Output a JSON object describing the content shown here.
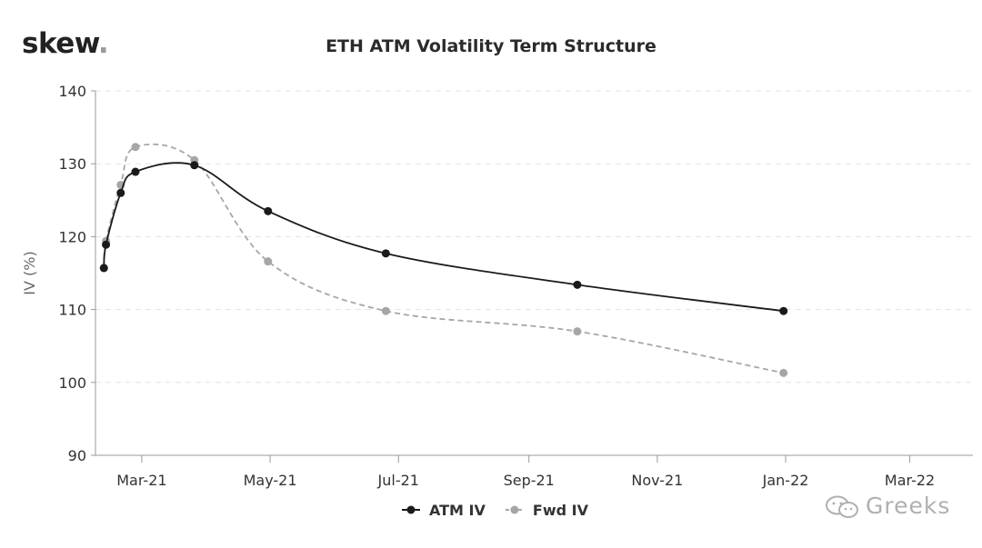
{
  "logo": {
    "text": "skew",
    "dot": "."
  },
  "chart_data": {
    "type": "line",
    "title": "ETH ATM Volatility Term Structure",
    "ylabel": "IV (%)",
    "xlabel": "",
    "ylim": [
      90,
      140
    ],
    "yticks": [
      90,
      100,
      110,
      120,
      130,
      140
    ],
    "xlim": [
      "2021-02-07",
      "2022-03-31"
    ],
    "xticks": [
      {
        "label": "Mar-21",
        "date": "2021-03-01"
      },
      {
        "label": "May-21",
        "date": "2021-05-01"
      },
      {
        "label": "Jul-21",
        "date": "2021-07-01"
      },
      {
        "label": "Sep-21",
        "date": "2021-09-01"
      },
      {
        "label": "Nov-21",
        "date": "2021-11-01"
      },
      {
        "label": "Jan-22",
        "date": "2022-01-01"
      },
      {
        "label": "Mar-22",
        "date": "2022-03-01"
      }
    ],
    "grid": "horizontal dashed",
    "legend": "bottom-center",
    "series": [
      {
        "name": "ATM IV",
        "color": "#1a1a1a",
        "style": "solid",
        "points": [
          {
            "x": "2021-02-11",
            "y": 115.7
          },
          {
            "x": "2021-02-12",
            "y": 118.9
          },
          {
            "x": "2021-02-19",
            "y": 126.0
          },
          {
            "x": "2021-02-26",
            "y": 128.9
          },
          {
            "x": "2021-03-26",
            "y": 129.8
          },
          {
            "x": "2021-04-30",
            "y": 123.5
          },
          {
            "x": "2021-06-25",
            "y": 117.7
          },
          {
            "x": "2021-09-24",
            "y": 113.4
          },
          {
            "x": "2021-12-31",
            "y": 109.8
          }
        ]
      },
      {
        "name": "Fwd IV",
        "color": "#a6a6a6",
        "style": "dashed",
        "points": [
          {
            "x": "2021-02-11",
            "y": 115.7
          },
          {
            "x": "2021-02-12",
            "y": 119.4
          },
          {
            "x": "2021-02-19",
            "y": 127.1
          },
          {
            "x": "2021-02-26",
            "y": 132.3
          },
          {
            "x": "2021-03-26",
            "y": 130.5
          },
          {
            "x": "2021-04-30",
            "y": 116.6
          },
          {
            "x": "2021-06-25",
            "y": 109.8
          },
          {
            "x": "2021-09-24",
            "y": 107.0
          },
          {
            "x": "2021-12-31",
            "y": 101.3
          }
        ]
      }
    ]
  },
  "watermark": {
    "text": "Greeks",
    "icon": "wechat-icon"
  }
}
